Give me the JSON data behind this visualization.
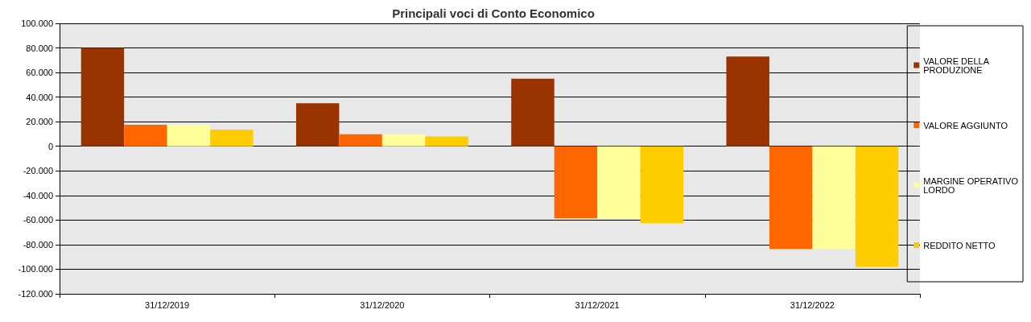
{
  "chart_data": {
    "type": "bar",
    "title": "Principali voci di Conto Economico",
    "categories": [
      "31/12/2019",
      "31/12/2020",
      "31/12/2021",
      "31/12/2022"
    ],
    "series": [
      {
        "name": "VALORE DELLA PRODUZIONE",
        "color": "#993300",
        "values": [
          80000,
          35000,
          55000,
          73000
        ]
      },
      {
        "name": "VALORE AGGIUNTO",
        "color": "#ff6600",
        "values": [
          17500,
          9800,
          -58500,
          -83500
        ]
      },
      {
        "name": "MARGINE OPERATIVO LORDO",
        "color": "#ffff99",
        "values": [
          17500,
          9800,
          -59000,
          -83500
        ]
      },
      {
        "name": "REDDITO NETTO",
        "color": "#ffcc00",
        "values": [
          13500,
          8000,
          -62500,
          -98000
        ]
      }
    ],
    "ylim": [
      -120000,
      100000
    ],
    "yticks": [
      {
        "value": -120000,
        "label": "-120.000"
      },
      {
        "value": -100000,
        "label": "-100.000"
      },
      {
        "value": -80000,
        "label": "-80.000"
      },
      {
        "value": -60000,
        "label": "-60.000"
      },
      {
        "value": -40000,
        "label": "-40.000"
      },
      {
        "value": -20000,
        "label": "-20.000"
      },
      {
        "value": 0,
        "label": "0"
      },
      {
        "value": 20000,
        "label": "20.000"
      },
      {
        "value": 40000,
        "label": "40.000"
      },
      {
        "value": 60000,
        "label": "60.000"
      },
      {
        "value": 80000,
        "label": "80.000"
      },
      {
        "value": 100000,
        "label": "100.000"
      }
    ],
    "grid": "y",
    "legend": "right"
  }
}
